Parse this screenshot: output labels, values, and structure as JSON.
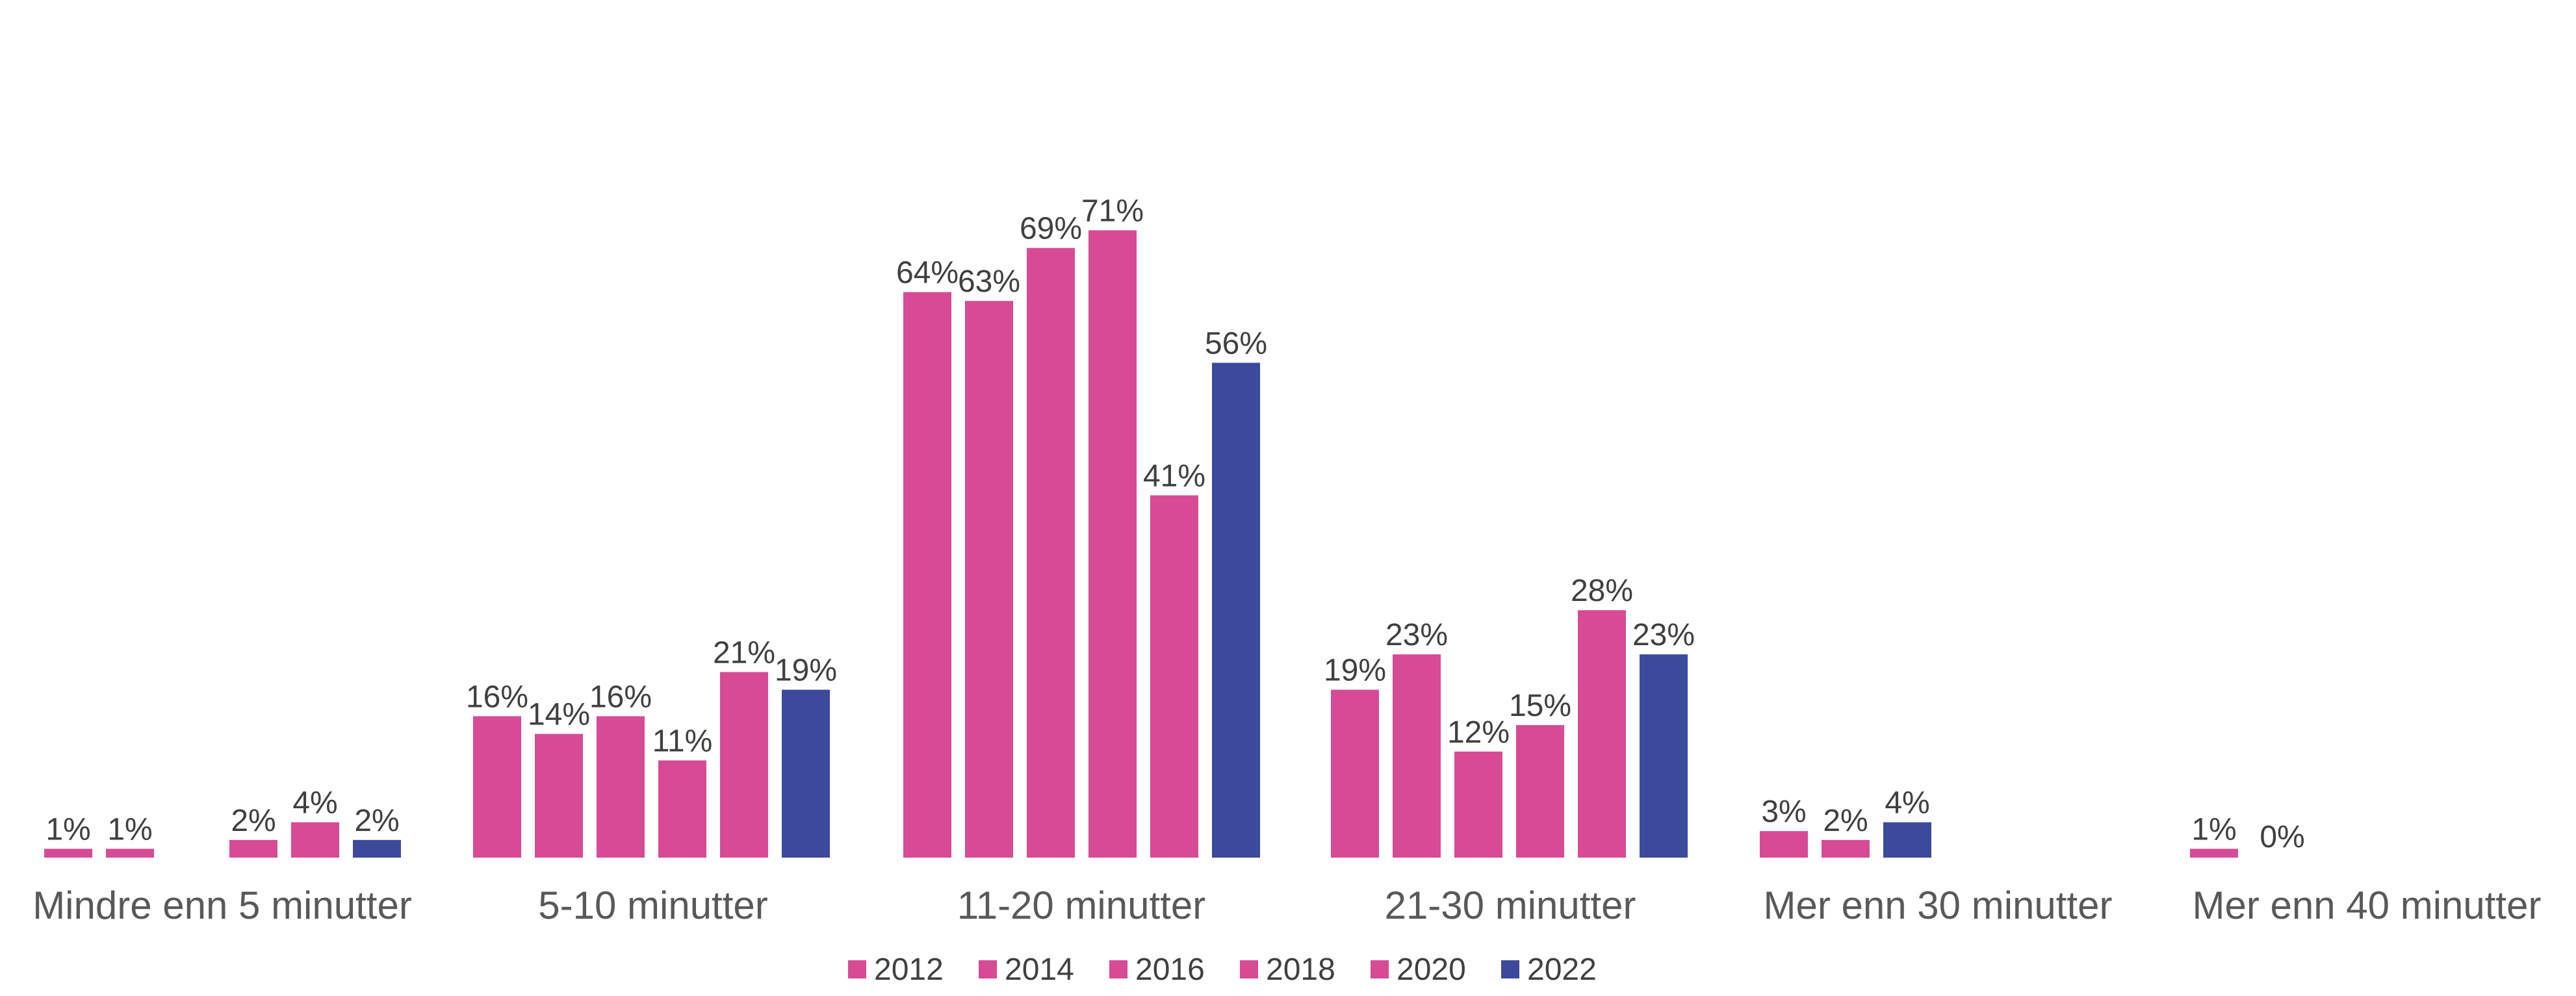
{
  "chart_data": {
    "type": "bar",
    "categories": [
      "Mindre enn 5 minutter",
      "5-10 minutter",
      "11-20 minutter",
      "21-30 minutter",
      "Mer enn 30 minutter",
      "Mer enn 40 minutter"
    ],
    "series": [
      {
        "name": "2012",
        "color": "#D64B94",
        "values": [
          1,
          16,
          64,
          19,
          null,
          null
        ],
        "labels": [
          "1%",
          "16%",
          "64%",
          "19%",
          null,
          null
        ]
      },
      {
        "name": "2014",
        "color": "#D64B94",
        "values": [
          1,
          14,
          63,
          23,
          null,
          null
        ],
        "labels": [
          "1%",
          "14%",
          "63%",
          "23%",
          null,
          null
        ]
      },
      {
        "name": "2016",
        "color": "#D64B94",
        "values": [
          null,
          16,
          69,
          12,
          null,
          null
        ],
        "labels": [
          null,
          "16%",
          "69%",
          "12%",
          null,
          null
        ]
      },
      {
        "name": "2018",
        "color": "#D64B94",
        "values": [
          2,
          11,
          71,
          15,
          3,
          null
        ],
        "labels": [
          "2%",
          "11%",
          "71%",
          "15%",
          "3%",
          null
        ]
      },
      {
        "name": "2020",
        "color": "#D64B94",
        "values": [
          4,
          21,
          41,
          28,
          2,
          1
        ],
        "labels": [
          "4%",
          "21%",
          "41%",
          "28%",
          "2%",
          "1%"
        ]
      },
      {
        "name": "2022",
        "color": "#3C4A9B",
        "values": [
          2,
          19,
          56,
          23,
          4,
          0
        ],
        "labels": [
          "2%",
          "19%",
          "56%",
          "23%",
          "4%",
          "0%"
        ]
      }
    ],
    "extra_labels": [
      {
        "category": 4,
        "series": 5,
        "offset": 1,
        "value": 0,
        "text": "0%"
      }
    ],
    "ylim": [
      0,
      75
    ],
    "grid": false,
    "legend_position": "bottom"
  }
}
